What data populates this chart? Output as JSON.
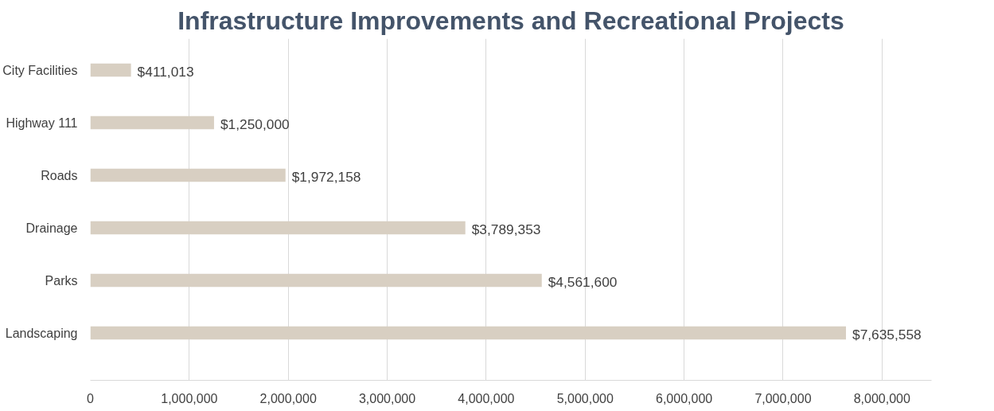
{
  "chart_data": {
    "type": "bar",
    "orientation": "horizontal",
    "title": "Infrastructure Improvements and Recreational Projects",
    "categories": [
      "City Facilities",
      "Highway 111",
      "Roads",
      "Drainage",
      "Parks",
      "Landscaping"
    ],
    "values": [
      411013,
      1250000,
      1972158,
      3789353,
      4561600,
      7635558
    ],
    "value_labels": [
      "$411,013",
      "$1,250,000",
      "$1,972,158",
      "$3,789,353",
      "$4,561,600",
      "$7,635,558"
    ],
    "color": "#d8cfc2",
    "xlim": [
      0,
      8500000
    ],
    "xticks": [
      0,
      {
        "value": 1000000,
        "label": "1,000,000"
      },
      {
        "value": 2000000,
        "label": "2,000,000"
      },
      {
        "value": 3000000,
        "label": "3,000,000"
      },
      {
        "value": 4000000,
        "label": "4,000,000"
      },
      {
        "value": 5000000,
        "label": "5,000,000"
      },
      {
        "value": 6000000,
        "label": "6,000,000"
      },
      {
        "value": 7000000,
        "label": "7,000,000"
      },
      {
        "value": 8000000,
        "label": "8,000,000"
      }
    ],
    "grid": "x"
  }
}
